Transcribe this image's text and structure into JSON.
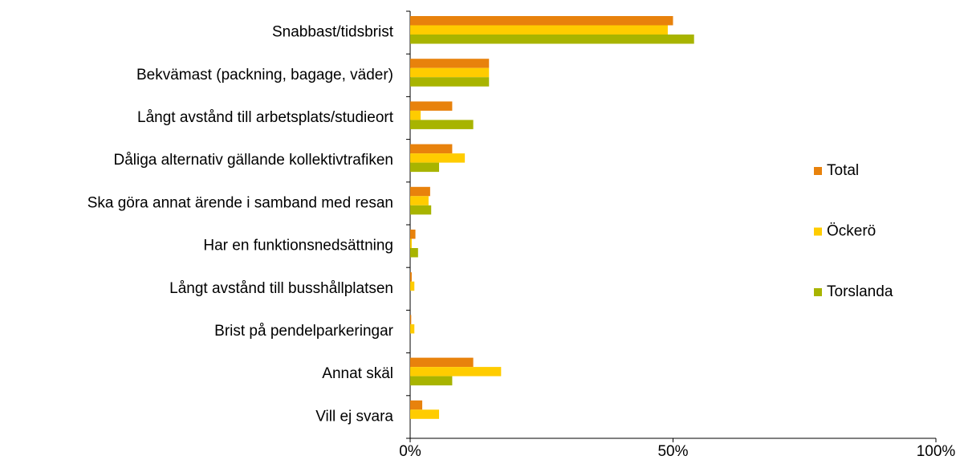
{
  "chart_data": {
    "type": "bar",
    "orientation": "horizontal",
    "categories": [
      "Snabbast/tidsbrist",
      "Bekvämast (packning, bagage, väder)",
      "Långt avstånd till arbetsplats/studieort",
      "Dåliga alternativ gällande kollektivtrafiken",
      "Ska göra annat ärende i samband med resan",
      "Har en funktionsnedsättning",
      "Långt avstånd till busshållplatsen",
      "Brist på pendelparkeringar",
      "Annat skäl",
      "Vill ej svara"
    ],
    "series": [
      {
        "name": "Total",
        "color": "#e8820c",
        "values": [
          50,
          15,
          8,
          8,
          3.8,
          1,
          0.3,
          0.2,
          12,
          2.3
        ]
      },
      {
        "name": "Öckerö",
        "color": "#ffcc00",
        "values": [
          49,
          15,
          2,
          10.4,
          3.5,
          0.3,
          0.8,
          0.8,
          17.3,
          5.5
        ]
      },
      {
        "name": "Torslanda",
        "color": "#a8b400",
        "values": [
          54,
          15,
          12,
          5.5,
          4,
          1.5,
          0,
          0,
          8,
          0
        ]
      }
    ],
    "xlim": [
      0,
      100
    ],
    "xticks": [
      {
        "value": 0,
        "label": "0%"
      },
      {
        "value": 50,
        "label": "50%"
      },
      {
        "value": 100,
        "label": "100%"
      }
    ],
    "legend": "right"
  }
}
